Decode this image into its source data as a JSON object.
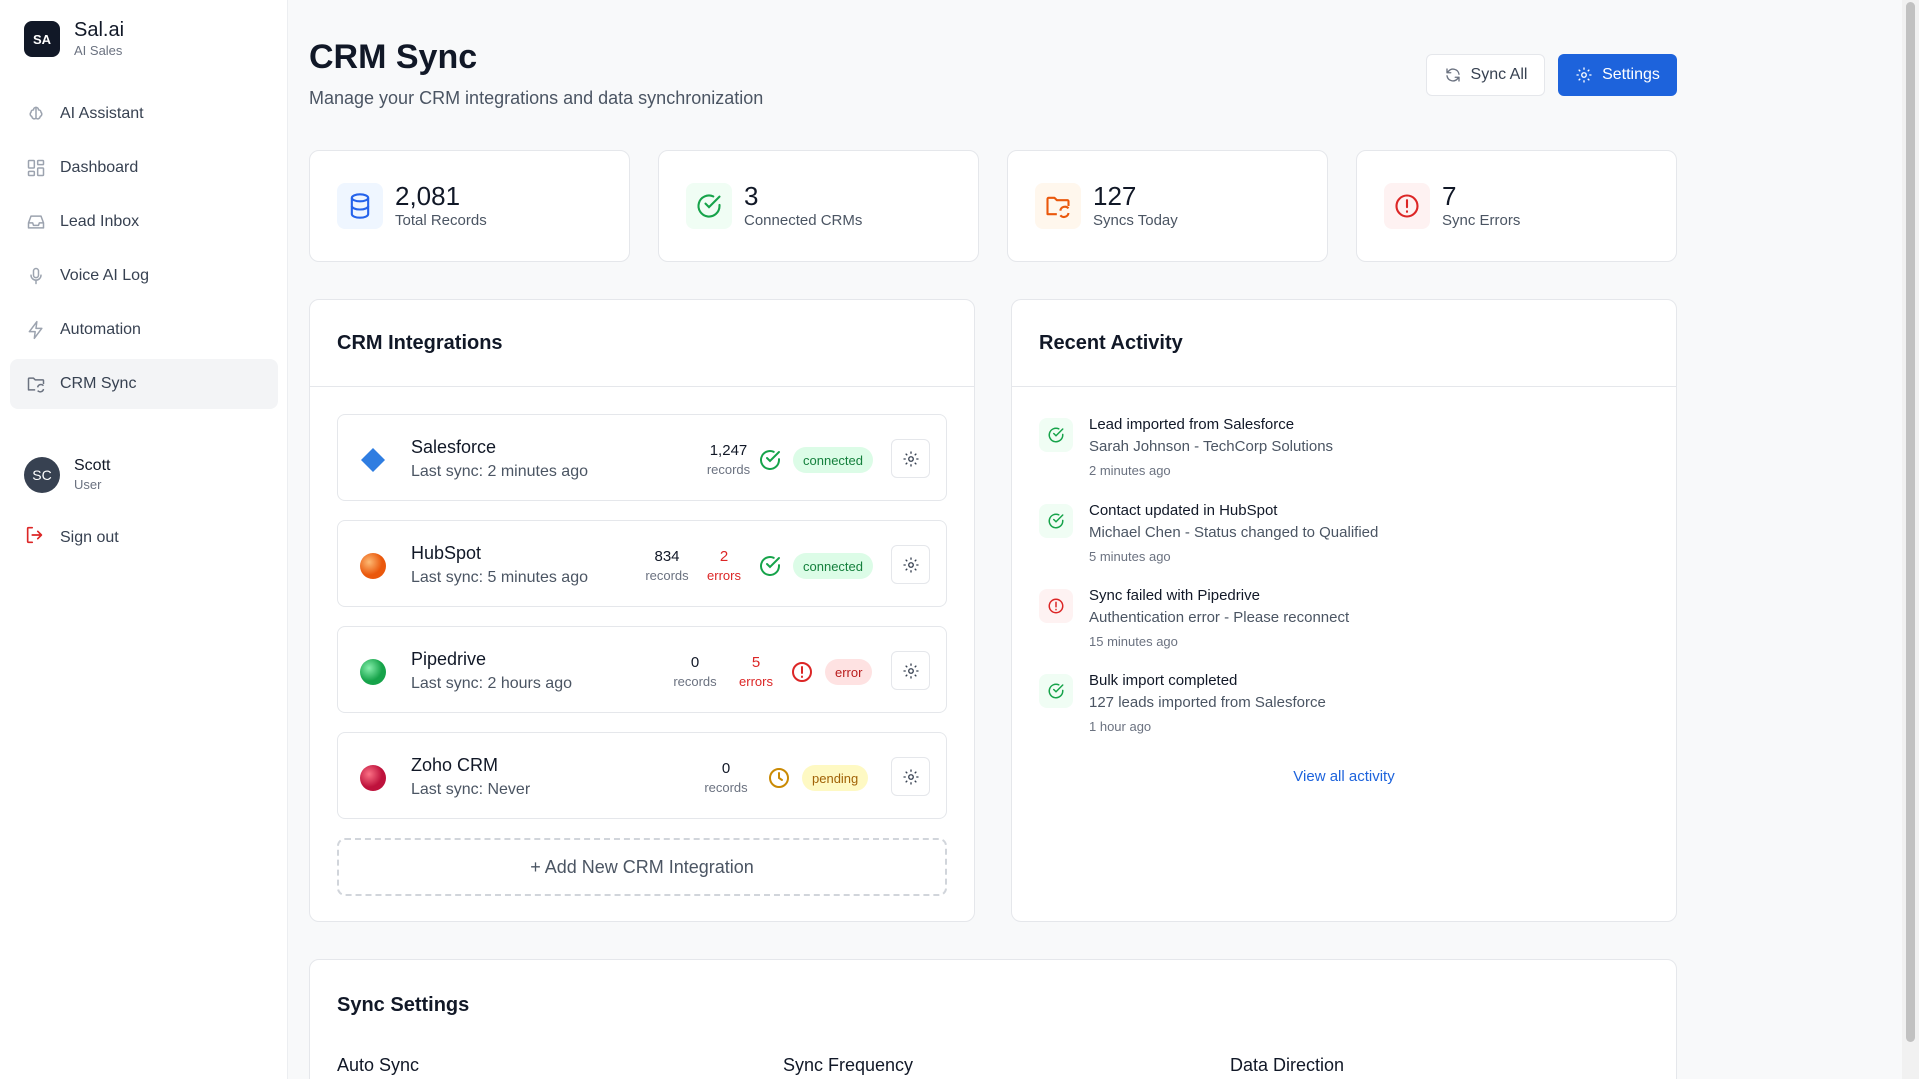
{
  "brand": {
    "logo": "SA",
    "name": "Sal.ai",
    "subtitle": "AI Sales"
  },
  "sidebar": {
    "items": [
      {
        "label": "AI Assistant",
        "icon": "brain-icon",
        "active": false
      },
      {
        "label": "Dashboard",
        "icon": "grid-icon",
        "active": false
      },
      {
        "label": "Lead Inbox",
        "icon": "inbox-icon",
        "active": false
      },
      {
        "label": "Voice AI Log",
        "icon": "mic-icon",
        "active": false
      },
      {
        "label": "Automation",
        "icon": "bolt-icon",
        "active": false
      },
      {
        "label": "CRM Sync",
        "icon": "folder-sync-icon",
        "active": true
      }
    ]
  },
  "user": {
    "initials": "SC",
    "name": "Scott",
    "role": "User"
  },
  "signout_label": "Sign out",
  "header": {
    "title": "CRM Sync",
    "subtitle": "Manage your CRM integrations and data synchronization",
    "sync_all_label": "Sync All",
    "settings_label": "Settings"
  },
  "stats": [
    {
      "value": "2,081",
      "label": "Total Records",
      "icon": "database-icon",
      "color": "#2563eb"
    },
    {
      "value": "3",
      "label": "Connected CRMs",
      "icon": "check-circle-icon",
      "color": "#16a34a"
    },
    {
      "value": "127",
      "label": "Syncs Today",
      "icon": "folder-sync-icon",
      "color": "#ea580c"
    },
    {
      "value": "7",
      "label": "Sync Errors",
      "icon": "alert-circle-icon",
      "color": "#dc2626"
    }
  ],
  "integrations": {
    "title": "CRM Integrations",
    "items": [
      {
        "name": "Salesforce",
        "last_sync": "Last sync: 2 minutes ago",
        "records": "1,247",
        "records_label": "records",
        "errors": "",
        "errors_label": "",
        "status": "connected"
      },
      {
        "name": "HubSpot",
        "last_sync": "Last sync: 5 minutes ago",
        "records": "834",
        "records_label": "records",
        "errors": "2",
        "errors_label": "errors",
        "status": "connected"
      },
      {
        "name": "Pipedrive",
        "last_sync": "Last sync: 2 hours ago",
        "records": "0",
        "records_label": "records",
        "errors": "5",
        "errors_label": "errors",
        "status": "error"
      },
      {
        "name": "Zoho CRM",
        "last_sync": "Last sync: Never",
        "records": "0",
        "records_label": "records",
        "errors": "",
        "errors_label": "",
        "status": "pending"
      }
    ],
    "add_label": "+ Add New CRM Integration"
  },
  "activity": {
    "title": "Recent Activity",
    "items": [
      {
        "title": "Lead imported from Salesforce",
        "desc": "Sarah Johnson - TechCorp Solutions",
        "time": "2 minutes ago",
        "type": "success"
      },
      {
        "title": "Contact updated in HubSpot",
        "desc": "Michael Chen - Status changed to Qualified",
        "time": "5 minutes ago",
        "type": "success"
      },
      {
        "title": "Sync failed with Pipedrive",
        "desc": "Authentication error - Please reconnect",
        "time": "15 minutes ago",
        "type": "error"
      },
      {
        "title": "Bulk import completed",
        "desc": "127 leads imported from Salesforce",
        "time": "1 hour ago",
        "type": "success"
      }
    ],
    "view_all": "View all activity"
  },
  "sync_settings": {
    "title": "Sync Settings",
    "labels": [
      "Auto Sync",
      "Sync Frequency",
      "Data Direction"
    ]
  },
  "colors": {
    "accent": "#1d63dc",
    "success": "#16a34a",
    "error": "#dc2626",
    "pending": "#ca8a04"
  }
}
